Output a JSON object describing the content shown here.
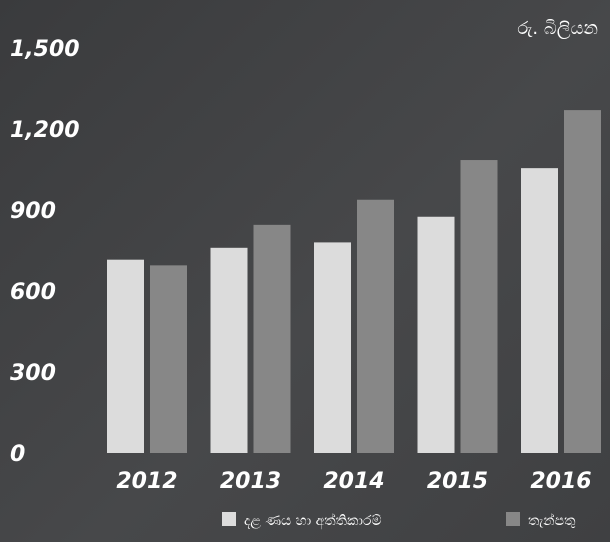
{
  "chart_data": {
    "type": "bar",
    "unit_label": "රු. බිලියන",
    "categories": [
      "2012",
      "2013",
      "2014",
      "2015",
      "2016"
    ],
    "series": [
      {
        "name": "දළ ණය හා අත්තිකාරම්",
        "color": "#dcdcdc",
        "values": [
          716,
          760,
          780,
          875,
          1055
        ]
      },
      {
        "name": "තැන්පතු",
        "color": "#878787",
        "values": [
          695,
          845,
          938,
          1085,
          1270
        ]
      }
    ],
    "ylim": [
      0,
      1500
    ],
    "yticks": [
      "0",
      "300",
      "600",
      "900",
      "1,200",
      "1,500"
    ],
    "ytick_values": [
      0,
      300,
      600,
      900,
      1200,
      1500
    ],
    "legend_position": "bottom-right",
    "grid": false
  }
}
